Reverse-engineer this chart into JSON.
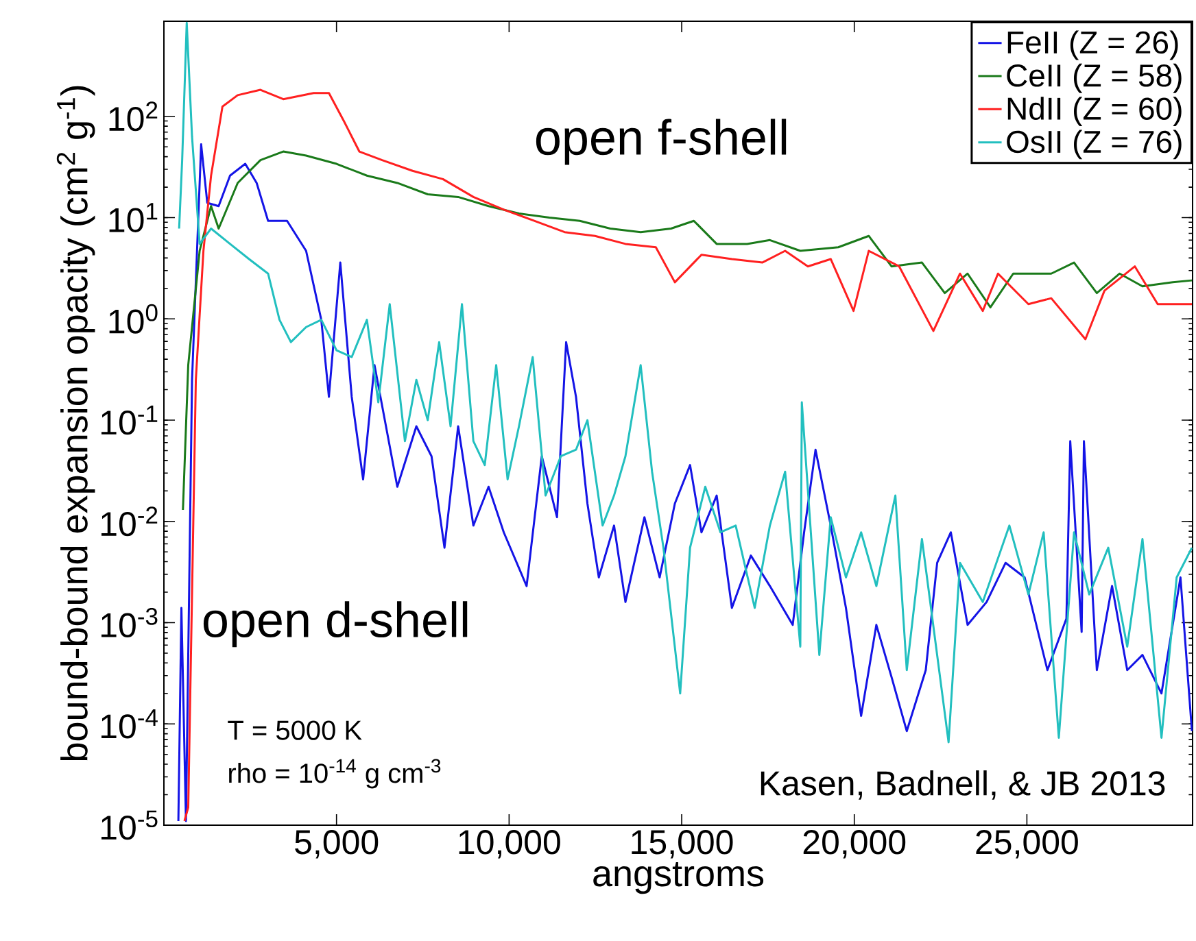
{
  "chart_data": {
    "type": "line",
    "xlabel": "angstroms",
    "ylabel": "bound-bound expansion opacity (cm$^{2}$ g$^{-1}$)",
    "log": "y",
    "legend": "top right",
    "xlim": [
      0,
      29800
    ],
    "ylim": [
      1e-05,
      870
    ],
    "xticks": [
      {
        "value": 5000,
        "label": "5,000"
      },
      {
        "value": 10000,
        "label": "10,000"
      },
      {
        "value": 15000,
        "label": "15,000"
      },
      {
        "value": 20000,
        "label": "20,000"
      },
      {
        "value": 25000,
        "label": "25,000"
      }
    ],
    "yticks": [
      {
        "value": 1e-05,
        "label": "10$^{-5}$"
      },
      {
        "value": 0.0001,
        "label": "10$^{-4}$"
      },
      {
        "value": 0.001,
        "label": "10$^{-3}$"
      },
      {
        "value": 0.01,
        "label": "10$^{-2}$"
      },
      {
        "value": 0.1,
        "label": "10$^{-1}$"
      },
      {
        "value": 1,
        "label": "10$^{0}$"
      },
      {
        "value": 10,
        "label": "10$^{1}$"
      },
      {
        "value": 100,
        "label": "10$^{2}$"
      }
    ],
    "annotations": [
      "open f-shell",
      "open d-shell",
      "T = 5000 K",
      "rho = 10$^{-14}$ g cm$^{-3}$",
      "Kasen, Badnell, & JB 2013"
    ],
    "series": [
      {
        "name": "FeII (Z = 26)",
        "color": "#1414e6",
        "x": [
          419,
          507,
          639,
          815,
          1079,
          1256,
          1586,
          1916,
          2357,
          2687,
          3018,
          3568,
          4119,
          4559,
          4780,
          5110,
          5441,
          5771,
          6101,
          6762,
          7313,
          7753,
          8128,
          8524,
          8965,
          9405,
          9846,
          10507,
          10947,
          11388,
          11652,
          11938,
          12269,
          12599,
          13040,
          13370,
          13921,
          14361,
          14802,
          15242,
          15573,
          16013,
          16454,
          17004,
          17555,
          18216,
          18546,
          18877,
          19317,
          19758,
          20198,
          20639,
          21079,
          21520,
          22070,
          22401,
          22797,
          23282,
          23833,
          24383,
          24934,
          25595,
          26145,
          26256,
          26586,
          26652,
          27026,
          27467,
          27907,
          28348,
          28899,
          29449,
          29780
        ],
        "values": [
          1.1e-05,
          0.0014,
          1.1e-05,
          0.25,
          53,
          14,
          13,
          26,
          34,
          22,
          9.3,
          9.3,
          4.7,
          0.98,
          0.17,
          3.6,
          0.17,
          0.026,
          0.35,
          0.022,
          0.087,
          0.044,
          0.0055,
          0.087,
          0.0091,
          0.022,
          0.0078,
          0.0023,
          0.044,
          0.011,
          0.59,
          0.17,
          0.015,
          0.0028,
          0.0091,
          0.0016,
          0.011,
          0.0028,
          0.015,
          0.036,
          0.0078,
          0.018,
          0.0014,
          0.0046,
          0.0023,
          0.00095,
          0.0078,
          0.051,
          0.0091,
          0.0014,
          0.00012,
          0.00095,
          0.00029,
          8.5e-05,
          0.00034,
          0.0039,
          0.0078,
          0.00095,
          0.0016,
          0.0039,
          0.0028,
          0.00034,
          0.0011,
          0.062,
          0.00081,
          0.062,
          0.00034,
          0.0023,
          0.00034,
          0.00048,
          0.0002,
          0.0028,
          8.5e-05
        ]
      },
      {
        "name": "CeII (Z = 58)",
        "color": "#1a7a1a",
        "x": [
          551,
          705,
          1035,
          1366,
          1586,
          2137,
          2797,
          3458,
          4119,
          5000,
          5881,
          6762,
          7643,
          8524,
          9405,
          10286,
          11167,
          12048,
          12930,
          13811,
          14692,
          15352,
          16013,
          16894,
          17555,
          18436,
          19537,
          20419,
          21079,
          21960,
          22621,
          23282,
          23943,
          24604,
          25705,
          26366,
          27026,
          27687,
          28348,
          29229,
          29780
        ],
        "values": [
          0.013,
          0.35,
          4.7,
          13,
          7.8,
          22,
          37,
          45,
          41,
          34,
          26,
          22,
          17,
          16,
          13,
          11,
          10,
          9.3,
          7.8,
          7.2,
          7.8,
          9.3,
          5.5,
          5.5,
          6.0,
          4.7,
          5.1,
          6.6,
          3.3,
          3.6,
          1.8,
          2.8,
          1.3,
          2.8,
          2.8,
          3.6,
          1.8,
          2.8,
          2.1,
          2.3,
          2.4
        ]
      },
      {
        "name": "NdII (Z = 60)",
        "color": "#ff2020",
        "x": [
          595,
          705,
          925,
          1145,
          1366,
          1696,
          2137,
          2797,
          3458,
          4339,
          4780,
          5220,
          5661,
          6322,
          7203,
          8084,
          8965,
          9846,
          10727,
          11608,
          12489,
          13370,
          14251,
          14802,
          15573,
          16454,
          17335,
          17996,
          18656,
          19317,
          19978,
          20419,
          21300,
          22291,
          23062,
          23722,
          24163,
          25044,
          25705,
          26696,
          27247,
          28128,
          28789,
          29780
        ],
        "values": [
          1.1e-05,
          1.5e-05,
          0.25,
          4.7,
          26,
          125,
          162,
          183,
          148,
          170,
          170,
          89,
          45,
          37,
          29,
          24,
          16,
          12,
          9.3,
          7.2,
          6.6,
          5.5,
          5.1,
          2.3,
          4.3,
          3.9,
          3.6,
          4.7,
          3.3,
          3.9,
          1.2,
          4.7,
          3.3,
          0.76,
          2.8,
          1.2,
          2.8,
          1.4,
          1.6,
          0.63,
          1.9,
          3.3,
          1.4,
          1.4
        ]
      },
      {
        "name": "OsII (Z = 76)",
        "color": "#22bfbf",
        "x": [
          441,
          529,
          661,
          815,
          1035,
          1366,
          1916,
          2467,
          3018,
          3348,
          3678,
          4119,
          4559,
          5000,
          5441,
          5881,
          6211,
          6542,
          6982,
          7313,
          7643,
          7974,
          8304,
          8634,
          8965,
          9295,
          9626,
          9956,
          10286,
          10683,
          11057,
          11498,
          11938,
          12269,
          12709,
          13040,
          13370,
          13811,
          14141,
          14471,
          14956,
          15242,
          15683,
          16123,
          16564,
          17115,
          17555,
          17996,
          18436,
          18480,
          18987,
          19317,
          19758,
          20198,
          20639,
          21190,
          21520,
          21960,
          22731,
          23062,
          23722,
          24493,
          25044,
          25485,
          25925,
          26366,
          26806,
          27357,
          27907,
          28348,
          28899,
          29339,
          29780
        ],
        "values": [
          7.8,
          37,
          840,
          63,
          5.5,
          7.8,
          5.5,
          3.9,
          2.8,
          0.98,
          0.59,
          0.83,
          0.98,
          0.49,
          0.42,
          0.98,
          0.15,
          1.4,
          0.062,
          0.25,
          0.1,
          0.59,
          0.087,
          1.4,
          0.062,
          0.036,
          0.35,
          0.026,
          0.087,
          0.42,
          0.018,
          0.044,
          0.051,
          0.1,
          0.0091,
          0.018,
          0.044,
          0.35,
          0.031,
          0.0055,
          0.0002,
          0.0055,
          0.022,
          0.0078,
          0.0091,
          0.0014,
          0.0091,
          0.031,
          0.00058,
          0.15,
          0.00048,
          0.011,
          0.0028,
          0.0078,
          0.0023,
          0.018,
          0.00034,
          0.0067,
          6.6e-05,
          0.0039,
          0.0016,
          0.0091,
          0.0019,
          0.0078,
          7.3e-05,
          0.0078,
          0.0019,
          0.0055,
          0.00058,
          0.0067,
          7.3e-05,
          0.0028,
          0.0055
        ]
      }
    ]
  }
}
